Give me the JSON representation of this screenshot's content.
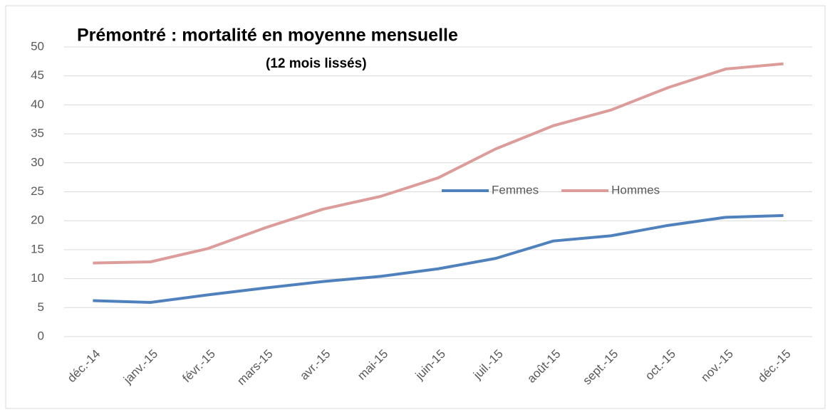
{
  "chart_data": {
    "type": "line",
    "title": "Prémontré : mortalité en moyenne mensuelle",
    "subtitle": "(12 mois lissés)",
    "categories": [
      "déc.-14",
      "janv.-15",
      "févr.-15",
      "mars-15",
      "avr.-15",
      "mai-15",
      "juin-15",
      "juil.-15",
      "août-15",
      "sept.-15",
      "oct.-15",
      "nov.-15",
      "déc.-15"
    ],
    "series": [
      {
        "name": "Femmes",
        "color": "#4f81bd",
        "values": [
          6.2,
          5.9,
          7.2,
          8.4,
          9.5,
          10.4,
          11.7,
          13.5,
          16.5,
          17.4,
          19.2,
          20.6,
          20.9
        ]
      },
      {
        "name": "Hommes",
        "color": "#dc9c9a",
        "values": [
          12.7,
          12.9,
          15.2,
          18.8,
          22.0,
          24.2,
          27.4,
          32.4,
          36.4,
          39.1,
          43.0,
          46.2,
          47.1
        ]
      }
    ],
    "ylim": [
      0,
      50
    ],
    "yticks": [
      0,
      5,
      10,
      15,
      20,
      25,
      30,
      35,
      40,
      45,
      50
    ],
    "grid": true,
    "legend": "center"
  }
}
